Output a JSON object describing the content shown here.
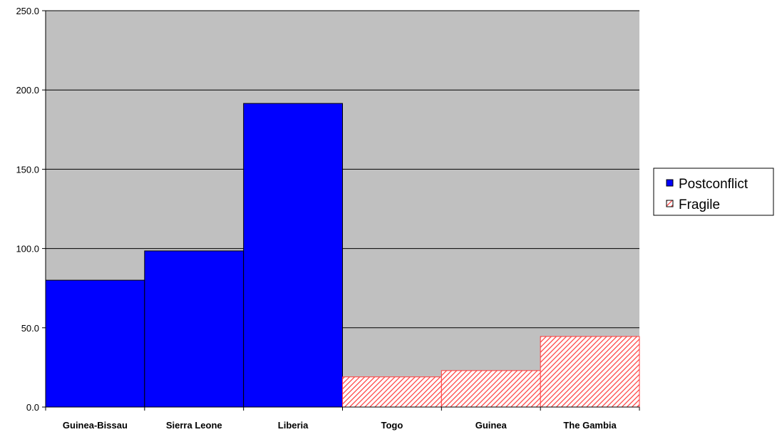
{
  "chart_data": {
    "type": "bar",
    "title": "",
    "xlabel": "",
    "ylabel": "",
    "ylim": [
      0,
      250
    ],
    "yticks": [
      "0.0",
      "50.0",
      "100.0",
      "150.0",
      "200.0",
      "250.0"
    ],
    "grid": true,
    "legend_position": "right",
    "plot_background": "#c0c0c0",
    "categories": [
      "Guinea-Bissau",
      "Sierra Leone",
      "Liberia",
      "Togo",
      "Guinea",
      "The Gambia"
    ],
    "series": [
      {
        "name": "Postconflict",
        "color": "#0000ff",
        "pattern": "solid",
        "values": [
          80,
          98.5,
          191.5,
          null,
          null,
          null
        ]
      },
      {
        "name": "Fragile",
        "color": "#ff6666",
        "pattern": "diagonal-hatch",
        "values": [
          null,
          null,
          null,
          19,
          23,
          44.5
        ]
      }
    ]
  }
}
